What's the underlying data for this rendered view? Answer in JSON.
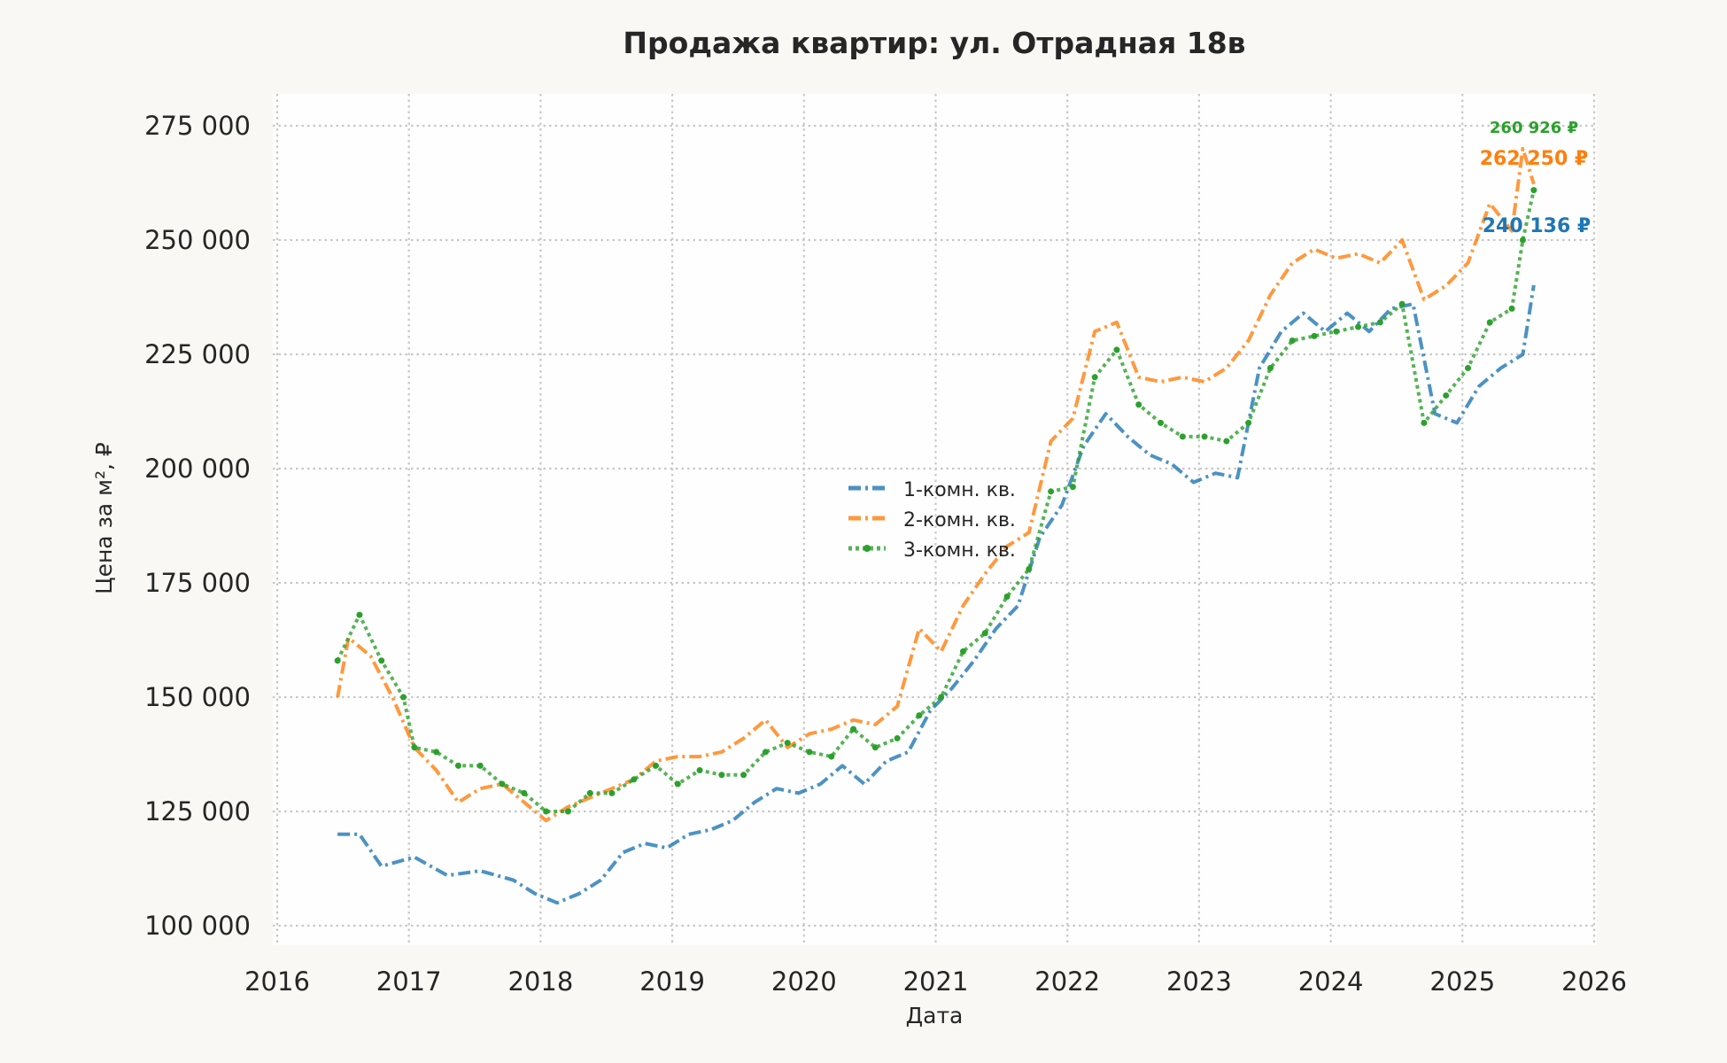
{
  "chart_data": {
    "type": "line",
    "title": "Продажа квартир: ул. Отрадная 18в",
    "xlabel": "Дата",
    "ylabel": "Цена за м², ₽",
    "xlim": [
      2016,
      2026
    ],
    "ylim": [
      96000,
      280000
    ],
    "x_ticks": [
      "2016",
      "2017",
      "2018",
      "2019",
      "2020",
      "2021",
      "2022",
      "2023",
      "2024",
      "2025",
      "2026"
    ],
    "y_ticks": [
      100000,
      125000,
      150000,
      175000,
      200000,
      225000,
      250000,
      275000
    ],
    "y_tick_labels": [
      "100 000",
      "125 000",
      "150 000",
      "175 000",
      "200 000",
      "225 000",
      "250 000",
      "275 000"
    ],
    "grid": true,
    "legend_position": "center",
    "series": [
      {
        "name": "1-комн. кв.",
        "color": "#1f77b4",
        "style": "dash-dot",
        "end_label": "240 136 ₽",
        "points": [
          [
            "2016-06",
            120000
          ],
          [
            "2016-08",
            120000
          ],
          [
            "2016-10",
            113000
          ],
          [
            "2017-01",
            115000
          ],
          [
            "2017-04",
            111000
          ],
          [
            "2017-07",
            112000
          ],
          [
            "2017-10",
            110000
          ],
          [
            "2017-12",
            107000
          ],
          [
            "2018-02",
            105000
          ],
          [
            "2018-04",
            107000
          ],
          [
            "2018-06",
            110000
          ],
          [
            "2018-08",
            116000
          ],
          [
            "2018-10",
            118000
          ],
          [
            "2018-12",
            117000
          ],
          [
            "2019-02",
            120000
          ],
          [
            "2019-04",
            121000
          ],
          [
            "2019-06",
            123000
          ],
          [
            "2019-08",
            127000
          ],
          [
            "2019-10",
            130000
          ],
          [
            "2019-12",
            129000
          ],
          [
            "2020-02",
            131000
          ],
          [
            "2020-04",
            135000
          ],
          [
            "2020-06",
            131000
          ],
          [
            "2020-08",
            136000
          ],
          [
            "2020-10",
            138000
          ],
          [
            "2020-12",
            147000
          ],
          [
            "2021-02",
            152000
          ],
          [
            "2021-04",
            158000
          ],
          [
            "2021-06",
            165000
          ],
          [
            "2021-08",
            170000
          ],
          [
            "2021-10",
            185000
          ],
          [
            "2021-12",
            192000
          ],
          [
            "2022-02",
            205000
          ],
          [
            "2022-04",
            212000
          ],
          [
            "2022-06",
            207000
          ],
          [
            "2022-08",
            203000
          ],
          [
            "2022-10",
            201000
          ],
          [
            "2022-12",
            197000
          ],
          [
            "2023-02",
            199000
          ],
          [
            "2023-04",
            198000
          ],
          [
            "2023-06",
            222000
          ],
          [
            "2023-08",
            230000
          ],
          [
            "2023-10",
            234000
          ],
          [
            "2023-12",
            230000
          ],
          [
            "2024-02",
            234000
          ],
          [
            "2024-04",
            230000
          ],
          [
            "2024-06",
            235000
          ],
          [
            "2024-08",
            236000
          ],
          [
            "2024-10",
            212000
          ],
          [
            "2024-12",
            210000
          ],
          [
            "2025-02",
            218000
          ],
          [
            "2025-04",
            222000
          ],
          [
            "2025-06",
            225000
          ],
          [
            "2025-07",
            240136
          ]
        ]
      },
      {
        "name": "2-комн. кв.",
        "color": "#ff7f0e",
        "style": "dash-dot",
        "end_label": "262 250 ₽",
        "points": [
          [
            "2016-06",
            150000
          ],
          [
            "2016-07",
            163000
          ],
          [
            "2016-09",
            159000
          ],
          [
            "2016-11",
            150000
          ],
          [
            "2017-01",
            139000
          ],
          [
            "2017-03",
            134000
          ],
          [
            "2017-05",
            127000
          ],
          [
            "2017-07",
            130000
          ],
          [
            "2017-09",
            131000
          ],
          [
            "2017-11",
            127000
          ],
          [
            "2018-01",
            123000
          ],
          [
            "2018-03",
            126000
          ],
          [
            "2018-05",
            128000
          ],
          [
            "2018-07",
            130000
          ],
          [
            "2018-09",
            132000
          ],
          [
            "2018-11",
            136000
          ],
          [
            "2019-01",
            137000
          ],
          [
            "2019-03",
            137000
          ],
          [
            "2019-05",
            138000
          ],
          [
            "2019-07",
            141000
          ],
          [
            "2019-09",
            145000
          ],
          [
            "2019-11",
            139000
          ],
          [
            "2020-01",
            142000
          ],
          [
            "2020-03",
            143000
          ],
          [
            "2020-05",
            145000
          ],
          [
            "2020-07",
            144000
          ],
          [
            "2020-09",
            148000
          ],
          [
            "2020-11",
            165000
          ],
          [
            "2021-01",
            160000
          ],
          [
            "2021-03",
            170000
          ],
          [
            "2021-05",
            177000
          ],
          [
            "2021-07",
            183000
          ],
          [
            "2021-09",
            186000
          ],
          [
            "2021-11",
            206000
          ],
          [
            "2022-01",
            211000
          ],
          [
            "2022-03",
            230000
          ],
          [
            "2022-05",
            232000
          ],
          [
            "2022-07",
            220000
          ],
          [
            "2022-09",
            219000
          ],
          [
            "2022-11",
            220000
          ],
          [
            "2023-01",
            219000
          ],
          [
            "2023-03",
            222000
          ],
          [
            "2023-05",
            228000
          ],
          [
            "2023-07",
            238000
          ],
          [
            "2023-09",
            245000
          ],
          [
            "2023-11",
            248000
          ],
          [
            "2024-01",
            246000
          ],
          [
            "2024-03",
            247000
          ],
          [
            "2024-05",
            245000
          ],
          [
            "2024-07",
            250000
          ],
          [
            "2024-09",
            237000
          ],
          [
            "2024-11",
            240000
          ],
          [
            "2025-01",
            245000
          ],
          [
            "2025-03",
            258000
          ],
          [
            "2025-05",
            252000
          ],
          [
            "2025-06",
            270000
          ],
          [
            "2025-07",
            262250
          ]
        ]
      },
      {
        "name": "3-комн. кв.",
        "color": "#2ca02c",
        "style": "dotted-markers",
        "end_label": "260 926 ₽",
        "points": [
          [
            "2016-06",
            158000
          ],
          [
            "2016-08",
            168000
          ],
          [
            "2016-10",
            158000
          ],
          [
            "2016-12",
            150000
          ],
          [
            "2017-01",
            139000
          ],
          [
            "2017-03",
            138000
          ],
          [
            "2017-05",
            135000
          ],
          [
            "2017-07",
            135000
          ],
          [
            "2017-09",
            131000
          ],
          [
            "2017-11",
            129000
          ],
          [
            "2018-01",
            125000
          ],
          [
            "2018-03",
            125000
          ],
          [
            "2018-05",
            129000
          ],
          [
            "2018-07",
            129000
          ],
          [
            "2018-09",
            132000
          ],
          [
            "2018-11",
            135000
          ],
          [
            "2019-01",
            131000
          ],
          [
            "2019-03",
            134000
          ],
          [
            "2019-05",
            133000
          ],
          [
            "2019-07",
            133000
          ],
          [
            "2019-09",
            138000
          ],
          [
            "2019-11",
            140000
          ],
          [
            "2020-01",
            138000
          ],
          [
            "2020-03",
            137000
          ],
          [
            "2020-05",
            143000
          ],
          [
            "2020-07",
            139000
          ],
          [
            "2020-09",
            141000
          ],
          [
            "2020-11",
            146000
          ],
          [
            "2021-01",
            150000
          ],
          [
            "2021-03",
            160000
          ],
          [
            "2021-05",
            164000
          ],
          [
            "2021-07",
            172000
          ],
          [
            "2021-09",
            178000
          ],
          [
            "2021-11",
            195000
          ],
          [
            "2022-01",
            196000
          ],
          [
            "2022-03",
            220000
          ],
          [
            "2022-05",
            226000
          ],
          [
            "2022-07",
            214000
          ],
          [
            "2022-09",
            210000
          ],
          [
            "2022-11",
            207000
          ],
          [
            "2023-01",
            207000
          ],
          [
            "2023-03",
            206000
          ],
          [
            "2023-05",
            210000
          ],
          [
            "2023-07",
            222000
          ],
          [
            "2023-09",
            228000
          ],
          [
            "2023-11",
            229000
          ],
          [
            "2024-01",
            230000
          ],
          [
            "2024-03",
            231000
          ],
          [
            "2024-05",
            232000
          ],
          [
            "2024-07",
            236000
          ],
          [
            "2024-09",
            210000
          ],
          [
            "2024-11",
            216000
          ],
          [
            "2025-01",
            222000
          ],
          [
            "2025-03",
            232000
          ],
          [
            "2025-05",
            235000
          ],
          [
            "2025-06",
            250000
          ],
          [
            "2025-07",
            260926
          ]
        ]
      }
    ]
  }
}
